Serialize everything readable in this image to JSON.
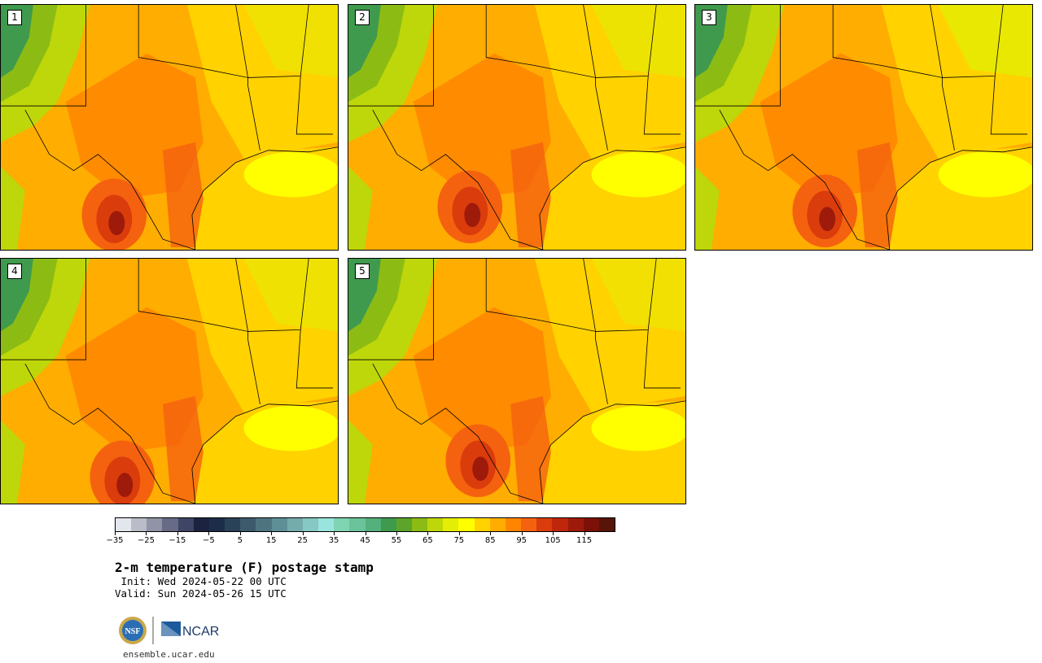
{
  "panels": [
    {
      "label": "1"
    },
    {
      "label": "2"
    },
    {
      "label": "3"
    },
    {
      "label": "4"
    },
    {
      "label": "5"
    }
  ],
  "colorbar": {
    "colors": [
      "#e4e6ee",
      "#babcc8",
      "#9094a6",
      "#676b85",
      "#3e4565",
      "#1b2340",
      "#1d2d49",
      "#2a4258",
      "#3c5a6c",
      "#4e7480",
      "#5f8f96",
      "#74acac",
      "#86c8c4",
      "#99e5de",
      "#7fd4b4",
      "#6ac39a",
      "#54b07c",
      "#3f9a4e",
      "#5ca42a",
      "#8cbc14",
      "#bed70a",
      "#e4ed04",
      "#ffff00",
      "#ffd200",
      "#ffad00",
      "#ff8500",
      "#f5620f",
      "#da3c0c",
      "#bf260c",
      "#9e1a0a",
      "#7c1108",
      "#561508"
    ],
    "tick_labels": [
      "−35",
      "−25",
      "−15",
      "−5",
      "5",
      "15",
      "25",
      "35",
      "45",
      "55",
      "65",
      "75",
      "85",
      "95",
      "105",
      "115"
    ]
  },
  "title": "2-m temperature (F) postage stamp",
  "init": " Init: Wed 2024-05-22 00 UTC",
  "valid": "Valid: Sun 2024-05-26 15 UTC",
  "logos": {
    "nsf": "NSF",
    "ncar": "NCAR"
  },
  "site": "ensemble.ucar.edu"
}
